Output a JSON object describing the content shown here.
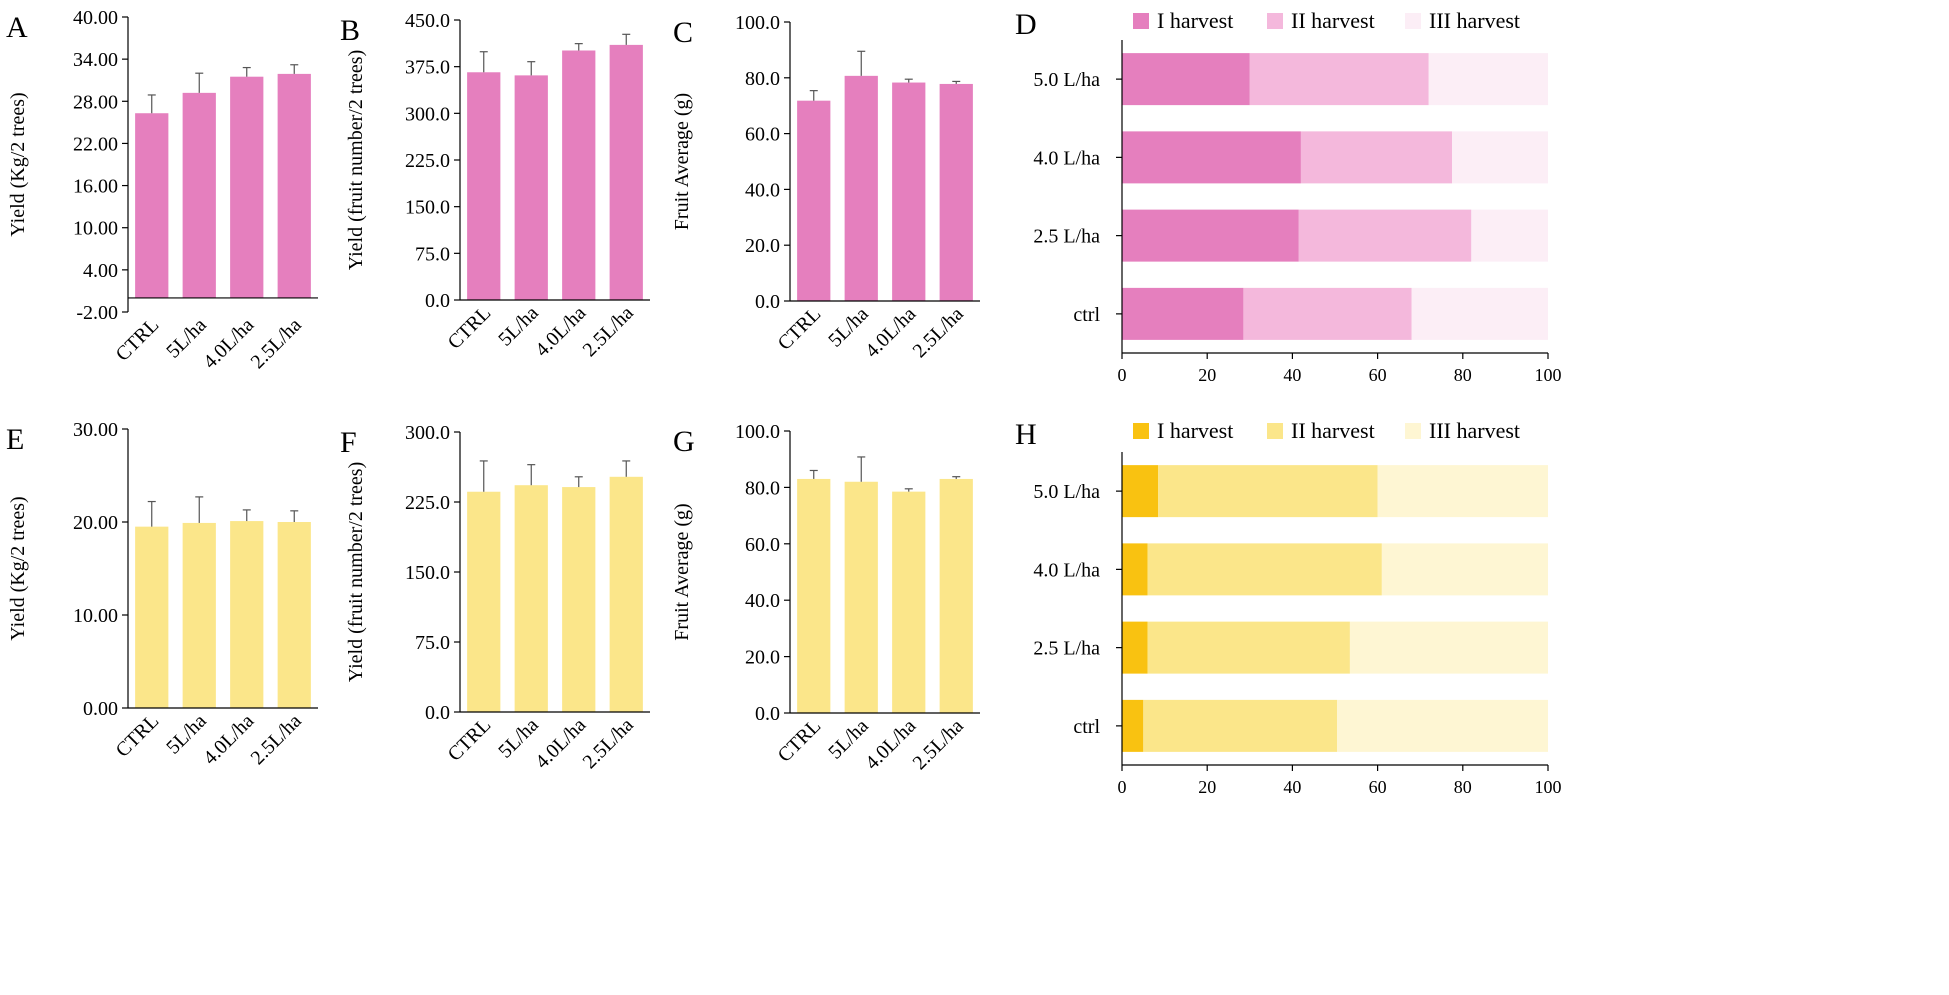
{
  "colors": {
    "pink": "#E57FBE",
    "pink_light": "#F4B8DC",
    "pink_pale": "#FCEEF6",
    "yellow": "#FBE68A",
    "yellow_dark": "#F9C211",
    "yellow_mid": "#FBE68A",
    "yellow_pale": "#FEF6D3",
    "axis": "#000000",
    "error": "#555555"
  },
  "chart_data": [
    {
      "panel": "A",
      "type": "bar",
      "categories": [
        "CTRL",
        "5L/ha",
        "4.0L/ha",
        "2.5L/ha"
      ],
      "values": [
        26.3,
        29.2,
        31.5,
        31.9
      ],
      "errors": [
        2.6,
        2.8,
        1.3,
        1.3
      ],
      "ylabel": "Yield (Kg/2 trees)",
      "ylim": [
        -2,
        40
      ],
      "yticks": [
        -2,
        4,
        10,
        16,
        22,
        28,
        34,
        40
      ],
      "ytick_labels": [
        "-2.00",
        "4.00",
        "10.00",
        "16.00",
        "22.00",
        "28.00",
        "34.00",
        "40.00"
      ],
      "color": "pink"
    },
    {
      "panel": "B",
      "type": "bar",
      "categories": [
        "CTRL",
        "5L/ha",
        "4.0L/ha",
        "2.5L/ha"
      ],
      "values": [
        366,
        361,
        401,
        410
      ],
      "errors": [
        33,
        22,
        11,
        17
      ],
      "ylabel": "Yield (fruit number/2 trees)",
      "ylim": [
        0,
        450
      ],
      "yticks": [
        0,
        75,
        150,
        225,
        300,
        375,
        450
      ],
      "ytick_labels": [
        "0.0",
        "75.0",
        "150.0",
        "225.0",
        "300.0",
        "375.0",
        "450.0"
      ],
      "color": "pink"
    },
    {
      "panel": "C",
      "type": "bar",
      "categories": [
        "CTRL",
        "5L/ha",
        "4.0L/ha",
        "2.5L/ha"
      ],
      "values": [
        71.8,
        80.7,
        78.3,
        77.8
      ],
      "errors": [
        3.6,
        8.8,
        1.2,
        0.9
      ],
      "ylabel": "Fruit Average (g)",
      "ylim": [
        0,
        100
      ],
      "yticks": [
        0,
        20,
        40,
        60,
        80,
        100
      ],
      "ytick_labels": [
        "0.0",
        "20.0",
        "40.0",
        "60.0",
        "80.0",
        "100.0"
      ],
      "color": "pink"
    },
    {
      "panel": "D",
      "type": "stacked_barh",
      "categories": [
        "ctrl",
        "2.5 L/ha",
        "4.0 L/ha",
        "5.0 L/ha"
      ],
      "series": [
        {
          "name": "I harvest",
          "values": [
            28.5,
            41.5,
            42,
            30
          ],
          "color": "pink"
        },
        {
          "name": "II harvest",
          "values": [
            39.5,
            40.5,
            35.5,
            42
          ],
          "color": "pink_light"
        },
        {
          "name": "III harvest",
          "values": [
            32,
            18,
            22.5,
            28
          ],
          "color": "pink_pale"
        }
      ],
      "xlim": [
        0,
        100
      ],
      "xticks": [
        0,
        20,
        40,
        60,
        80,
        100
      ],
      "xtick_labels": [
        "0",
        "20",
        "40",
        "60",
        "80",
        "100"
      ]
    },
    {
      "panel": "E",
      "type": "bar",
      "categories": [
        "CTRL",
        "5L/ha",
        "4.0L/ha",
        "2.5L/ha"
      ],
      "values": [
        19.5,
        19.9,
        20.1,
        20.0
      ],
      "errors": [
        2.7,
        2.8,
        1.2,
        1.2
      ],
      "ylabel": "Yield (Kg/2 trees)",
      "ylim": [
        0,
        30
      ],
      "yticks": [
        0,
        10,
        20,
        30
      ],
      "ytick_labels": [
        "0.00",
        "10.00",
        "20.00",
        "30.00"
      ],
      "color": "yellow"
    },
    {
      "panel": "F",
      "type": "bar",
      "categories": [
        "CTRL",
        "5L/ha",
        "4.0L/ha",
        "2.5L/ha"
      ],
      "values": [
        236,
        243,
        241,
        252
      ],
      "errors": [
        33,
        22,
        11,
        17
      ],
      "ylabel": "Yield (fruit number/2 trees)",
      "ylim": [
        0,
        300
      ],
      "yticks": [
        0,
        75,
        150,
        225,
        300
      ],
      "ytick_labels": [
        "0.0",
        "75.0",
        "150.0",
        "225.0",
        "300.0"
      ],
      "color": "yellow"
    },
    {
      "panel": "G",
      "type": "bar",
      "categories": [
        "CTRL",
        "5L/ha",
        "4.0L/ha",
        "2.5L/ha"
      ],
      "values": [
        83.0,
        82.0,
        78.5,
        83.0
      ],
      "errors": [
        3.0,
        8.8,
        1.0,
        0.8
      ],
      "ylabel": "Fruit Average (g)",
      "ylim": [
        0,
        100
      ],
      "yticks": [
        0,
        20,
        40,
        60,
        80,
        100
      ],
      "ytick_labels": [
        "0.0",
        "20.0",
        "40.0",
        "60.0",
        "80.0",
        "100.0"
      ],
      "color": "yellow"
    },
    {
      "panel": "H",
      "type": "stacked_barh",
      "categories": [
        "ctrl",
        "2.5 L/ha",
        "4.0 L/ha",
        "5.0 L/ha"
      ],
      "series": [
        {
          "name": "I harvest",
          "values": [
            5,
            6,
            6,
            8.5
          ],
          "color": "yellow_dark"
        },
        {
          "name": "II harvest",
          "values": [
            45.5,
            47.5,
            55,
            51.5
          ],
          "color": "yellow_mid"
        },
        {
          "name": "III harvest",
          "values": [
            49.5,
            46.5,
            39,
            40
          ],
          "color": "yellow_pale"
        }
      ],
      "xlim": [
        0,
        100
      ],
      "xticks": [
        0,
        20,
        40,
        60,
        80,
        100
      ],
      "xtick_labels": [
        "0",
        "20",
        "40",
        "60",
        "80",
        "100"
      ]
    }
  ]
}
